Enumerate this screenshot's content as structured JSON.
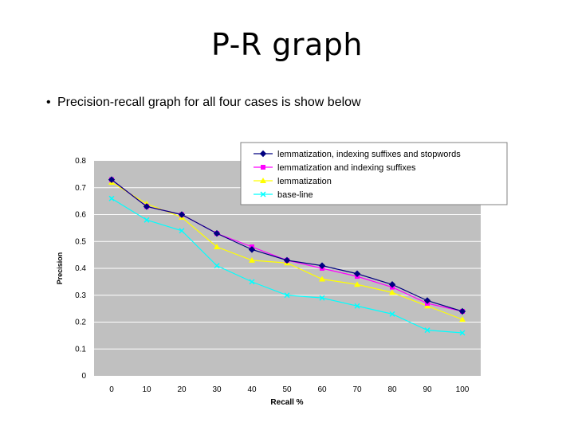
{
  "slide": {
    "title": "P-R graph",
    "bullet_marker": "•",
    "bullet": "Precision-recall graph for all four cases is show below"
  },
  "colors": {
    "plot_bg": "#c0c0c0",
    "grid": "#ffffff",
    "series": [
      "#000080",
      "#ff00ff",
      "#ffff00",
      "#00ffff"
    ]
  },
  "chart_data": {
    "type": "line",
    "title": "",
    "xlabel": "Recall %",
    "ylabel": "Precision",
    "x": [
      0,
      10,
      20,
      30,
      40,
      50,
      60,
      70,
      80,
      90,
      100
    ],
    "x_tick_labels": [
      "0",
      "10",
      "20",
      "30",
      "40",
      "50",
      "60",
      "70",
      "80",
      "90",
      "100"
    ],
    "y_tick_labels": [
      "0",
      "0.1",
      "0.2",
      "0.3",
      "0.4",
      "0.5",
      "0.6",
      "0.7",
      "0.8"
    ],
    "ylim": [
      0,
      0.8
    ],
    "grid": "horizontal",
    "legend_position": "top-right",
    "series": [
      {
        "name": "lemmatization, indexing suffixes and stopwords",
        "marker": "diamond",
        "values": [
          0.73,
          0.63,
          0.6,
          0.53,
          0.47,
          0.43,
          0.41,
          0.38,
          0.34,
          0.28,
          0.24
        ]
      },
      {
        "name": "lemmatization and indexing suffixes",
        "marker": "square",
        "values": [
          0.73,
          0.63,
          0.6,
          0.53,
          0.48,
          0.43,
          0.4,
          0.37,
          0.33,
          0.27,
          0.24
        ]
      },
      {
        "name": "lemmatization",
        "marker": "triangle",
        "values": [
          0.72,
          0.64,
          0.59,
          0.48,
          0.43,
          0.42,
          0.36,
          0.34,
          0.31,
          0.26,
          0.21
        ]
      },
      {
        "name": "base-line",
        "marker": "x",
        "values": [
          0.66,
          0.58,
          0.54,
          0.41,
          0.35,
          0.3,
          0.29,
          0.26,
          0.23,
          0.17,
          0.16
        ]
      }
    ]
  }
}
